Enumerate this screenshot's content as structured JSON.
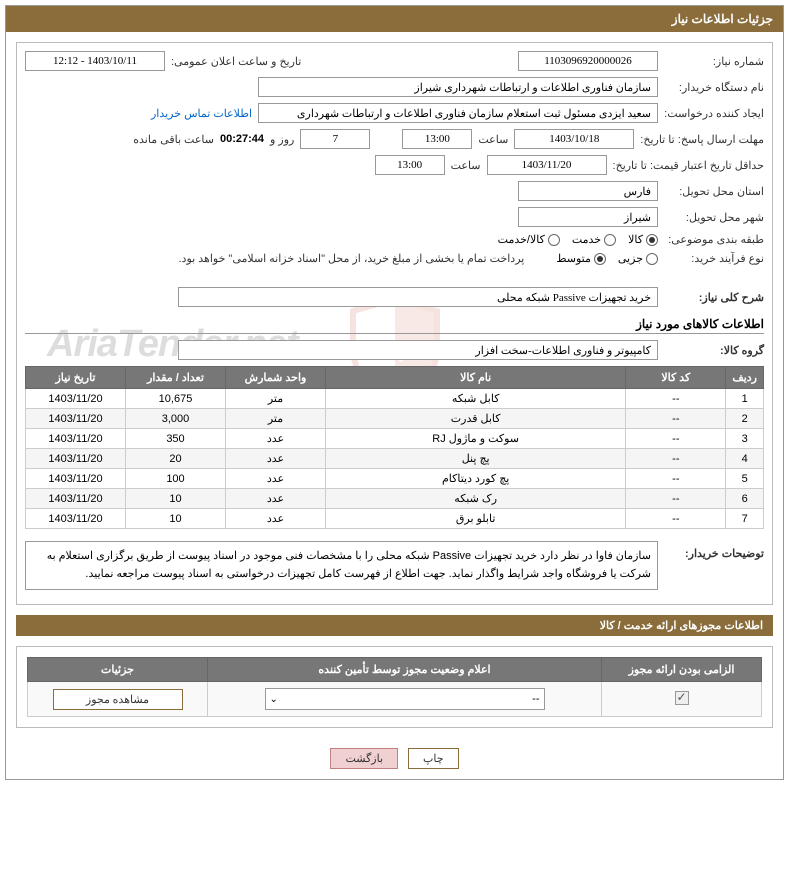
{
  "header": {
    "title": "جزئیات اطلاعات نیاز"
  },
  "form": {
    "need_number_label": "شماره نیاز:",
    "need_number": "1103096920000026",
    "announce_label": "تاریخ و ساعت اعلان عمومی:",
    "announce_datetime": "1403/10/11 - 12:12",
    "buyer_org_label": "نام دستگاه خریدار:",
    "buyer_org": "سازمان فناوری اطلاعات و ارتباطات شهرداری شیراز",
    "requester_label": "ایجاد کننده درخواست:",
    "requester": "سعید ایزدی مسئول ثبت استعلام سازمان فناوری اطلاعات و ارتباطات شهرداری",
    "buyer_contact_link": "اطلاعات تماس خریدار",
    "deadline_label": "مهلت ارسال پاسخ: تا تاریخ:",
    "deadline_date": "1403/10/18",
    "time_label": "ساعت",
    "deadline_time": "13:00",
    "days": "7",
    "days_label": "روز و",
    "countdown": "00:27:44",
    "remaining_label": "ساعت باقی مانده",
    "validity_label": "حداقل تاریخ اعتبار قیمت: تا تاریخ:",
    "validity_date": "1403/11/20",
    "validity_time": "13:00",
    "province_label": "استان محل تحویل:",
    "province": "فارس",
    "city_label": "شهر محل تحویل:",
    "city": "شیراز",
    "category_label": "طبقه بندی موضوعی:",
    "cat_goods": "کالا",
    "cat_service": "خدمت",
    "cat_goods_service": "کالا/خدمت",
    "process_label": "نوع فرآیند خرید:",
    "proc_minor": "جزیی",
    "proc_medium": "متوسط",
    "process_note": "پرداخت تمام یا بخشی از مبلغ خرید، از محل \"اسناد خزانه اسلامی\" خواهد بود.",
    "general_desc_label": "شرح کلی نیاز:",
    "general_desc": "خرید تجهیزات Passive شبکه محلی",
    "items_title": "اطلاعات کالاهای مورد نیاز",
    "group_label": "گروه کالا:",
    "group": "کامپیوتر و فناوری اطلاعات-سخت افزار",
    "buyer_desc_label": "توضیحات خریدار:",
    "buyer_desc": "سازمان فاوا در نظر دارد خرید تجهیزات Passive شبکه محلی را با مشخصات فنی موجود در اسناد پیوست از طریق برگزاری استعلام به شرکت یا فروشگاه واجد شرایط واگذار نماید. جهت اطلاع از فهرست کامل تجهیزات درخواستی به اسناد پیوست مراجعه نمایید."
  },
  "table": {
    "headers": {
      "row": "ردیف",
      "code": "کد کالا",
      "name": "نام کالا",
      "unit": "واحد شمارش",
      "qty": "تعداد / مقدار",
      "date": "تاریخ نیاز"
    },
    "rows": [
      {
        "n": "1",
        "code": "--",
        "name": "کابل شبکه",
        "unit": "متر",
        "qty": "10,675",
        "date": "1403/11/20"
      },
      {
        "n": "2",
        "code": "--",
        "name": "کابل قدرت",
        "unit": "متر",
        "qty": "3,000",
        "date": "1403/11/20"
      },
      {
        "n": "3",
        "code": "--",
        "name": "سوکت و ماژول RJ",
        "unit": "عدد",
        "qty": "350",
        "date": "1403/11/20"
      },
      {
        "n": "4",
        "code": "--",
        "name": "پچ پنل",
        "unit": "عدد",
        "qty": "20",
        "date": "1403/11/20"
      },
      {
        "n": "5",
        "code": "--",
        "name": "پچ کورد دیتاکام",
        "unit": "عدد",
        "qty": "100",
        "date": "1403/11/20"
      },
      {
        "n": "6",
        "code": "--",
        "name": "رک شبکه",
        "unit": "عدد",
        "qty": "10",
        "date": "1403/11/20"
      },
      {
        "n": "7",
        "code": "--",
        "name": "تابلو برق",
        "unit": "عدد",
        "qty": "10",
        "date": "1403/11/20"
      }
    ]
  },
  "license_section": {
    "title": "اطلاعات مجوزهای ارائه خدمت / کالا",
    "headers": {
      "mandatory": "الزامی بودن ارائه مجوز",
      "status": "اعلام وضعیت مجوز توسط تأمین کننده",
      "details": "جزئیات"
    },
    "dropdown_value": "--",
    "view_button": "مشاهده مجوز"
  },
  "buttons": {
    "print": "چاپ",
    "back": "بازگشت"
  },
  "watermark_text": "AriaTender.net",
  "colors": {
    "header_bg": "#8a6d3b",
    "table_header_bg": "#777777",
    "watermark_shield": "#c94a3a"
  }
}
